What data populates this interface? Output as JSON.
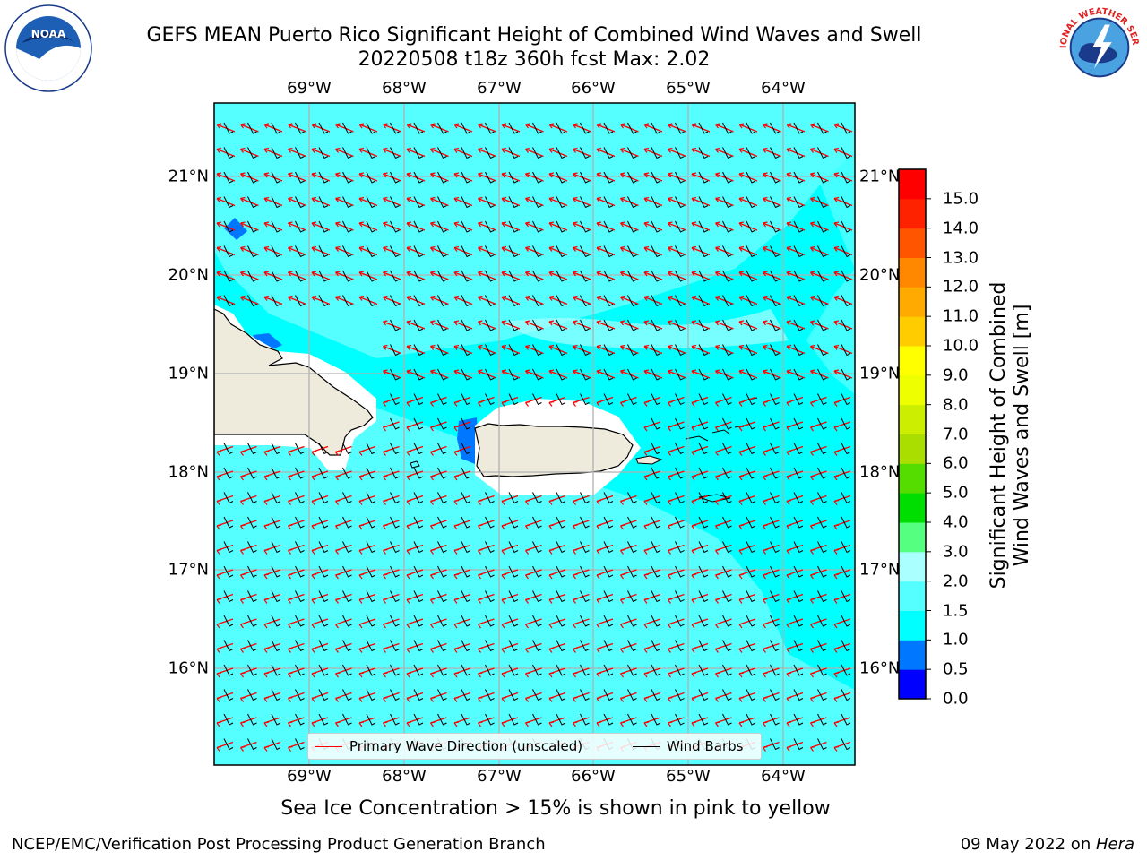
{
  "header": {
    "title_line1": "GEFS MEAN Puerto Rico Significant Height of Combined Wind Waves and Swell",
    "title_line2": "20220508 t18z 360h fcst   Max: 2.02"
  },
  "logos": {
    "noaa": {
      "text": "NOAA"
    },
    "nws": {
      "text": "NATIONAL WEATHER SERVICE"
    }
  },
  "map": {
    "lon_labels": [
      "69°W",
      "68°W",
      "67°W",
      "66°W",
      "65°W",
      "64°W"
    ],
    "lat_labels": [
      "21°N",
      "20°N",
      "19°N",
      "18°N",
      "17°N",
      "16°N"
    ],
    "extent": {
      "lon": [
        -70.0,
        -63.25
      ],
      "lat": [
        15.0,
        21.75
      ]
    },
    "ocean_color": "#00ffff",
    "land_color": "#eeebdc",
    "wave_arrow_color": "#ff0000",
    "barb_color": "#000000"
  },
  "colorbar": {
    "label_line1": "Significant Height of Combined",
    "label_line2": "Wind Waves and Swell [m]",
    "ticks": [
      "0.0",
      "0.5",
      "1.0",
      "1.5",
      "2.0",
      "3.0",
      "4.0",
      "5.0",
      "6.0",
      "7.0",
      "8.0",
      "9.0",
      "10.0",
      "11.0",
      "12.0",
      "13.0",
      "14.0",
      "15.0"
    ],
    "colors": [
      "#0000ff",
      "#0077ff",
      "#00ffff",
      "#55ffff",
      "#aaffff",
      "#55ff7f",
      "#00dd00",
      "#55dd00",
      "#aadd00",
      "#ccee00",
      "#eeff00",
      "#ffff00",
      "#ffcc00",
      "#ffaa00",
      "#ff8800",
      "#ff5500",
      "#ff2200",
      "#ff0000"
    ]
  },
  "legend": {
    "wave": "Primary Wave Direction (unscaled)",
    "barbs": "Wind Barbs"
  },
  "notes": {
    "ice": "Sea Ice Concentration > 15% is shown in pink to yellow"
  },
  "footer": {
    "left": "NCEP/EMC/Verification Post Processing Product Generation Branch",
    "date": "09 May 2022 on ",
    "machine": "Hera"
  }
}
